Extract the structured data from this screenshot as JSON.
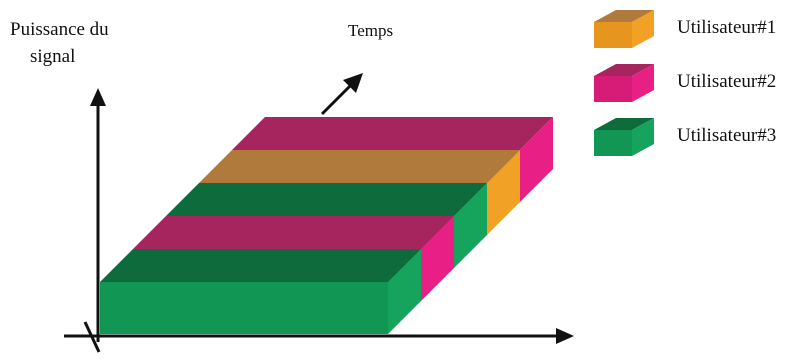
{
  "axes": {
    "y_label_line1": "Puissance du",
    "y_label_line2": "signal",
    "time_label": "Temps"
  },
  "legend": [
    {
      "label": "Utilisateur#1",
      "top": "#b07a3c",
      "front": "#e6951f",
      "side": "#f2a127"
    },
    {
      "label": "Utilisateur#2",
      "top": "#a6255e",
      "front": "#d61c77",
      "side": "#e81f84"
    },
    {
      "label": "Utilisateur#3",
      "top": "#0d6b3c",
      "front": "#119653",
      "side": "#16a35c"
    }
  ],
  "slabs": [
    "Utilisateur#2",
    "Utilisateur#1",
    "Utilisateur#3",
    "Utilisateur#2",
    "Utilisateur#3"
  ]
}
